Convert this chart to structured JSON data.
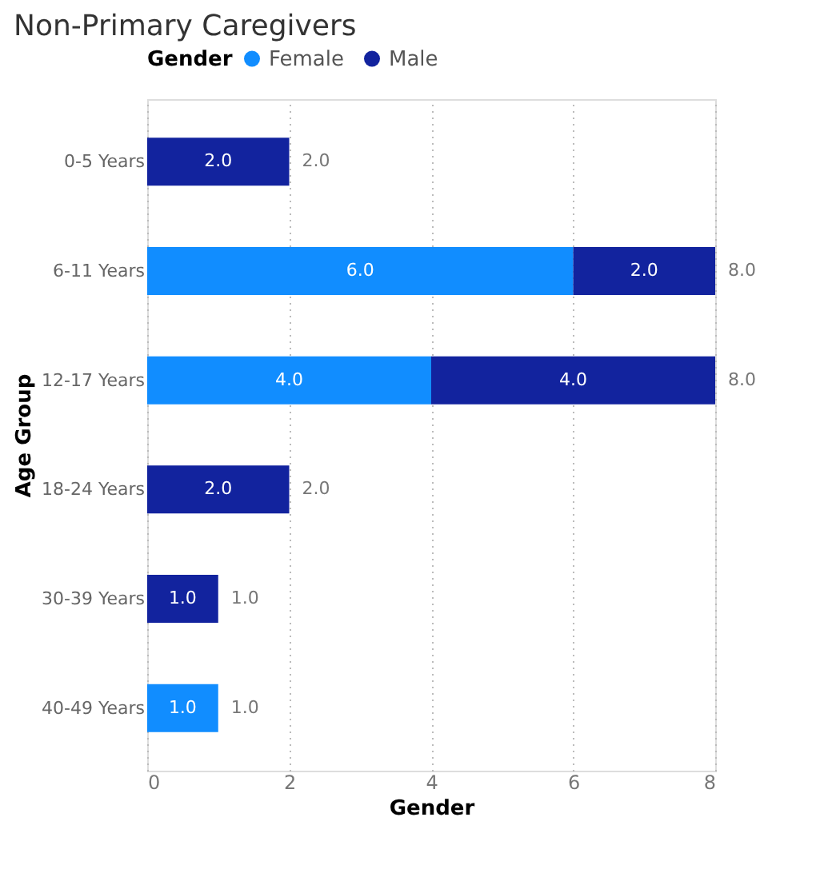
{
  "chart_data": {
    "type": "bar",
    "orientation": "horizontal",
    "stacked": true,
    "title": "Non-Primary Caregivers",
    "xlabel": "Gender",
    "ylabel": "Age Group",
    "legend_title": "Gender",
    "legend": "top left",
    "grid": "x",
    "categories": [
      "0-5 Years",
      "6-11 Years",
      "12-17 Years",
      "18-24 Years",
      "30-39 Years",
      "40-49 Years"
    ],
    "series": [
      {
        "name": "Female",
        "color": "#118dff",
        "values": [
          null,
          6,
          4,
          null,
          null,
          1
        ],
        "value_labels": [
          null,
          "6.0",
          "4.0",
          null,
          null,
          "1.0"
        ]
      },
      {
        "name": "Male",
        "color": "#12239e",
        "values": [
          2,
          2,
          4,
          2,
          1,
          null
        ],
        "value_labels": [
          "2.0",
          "2.0",
          "4.0",
          "2.0",
          "1.0",
          null
        ]
      }
    ],
    "totals": [
      "2.0",
      "8.0",
      "8.0",
      "2.0",
      "1.0",
      "1.0"
    ],
    "xlim": [
      0,
      8
    ],
    "xticks": [
      0,
      2,
      4,
      6,
      8
    ]
  }
}
